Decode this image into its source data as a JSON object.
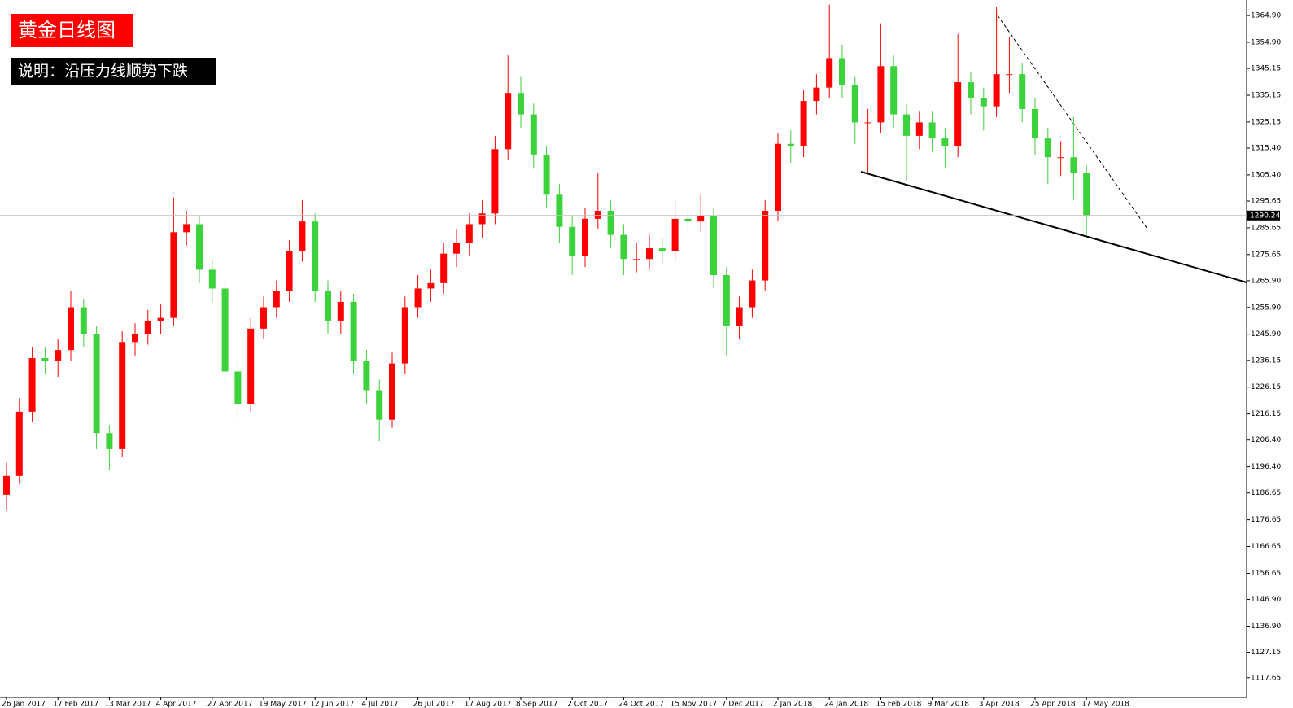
{
  "chart_data": {
    "type": "candlestick",
    "title": "黄金日线图",
    "subtitle": "说明：沿压力线顺势下跌",
    "categories": [
      "26 Jan 2017",
      null,
      null,
      null,
      "17 Feb 2017",
      null,
      null,
      null,
      "13 Mar 2017",
      null,
      null,
      null,
      "4 Apr 2017",
      null,
      null,
      null,
      "27 Apr 2017",
      null,
      null,
      null,
      "19 May 2017",
      null,
      null,
      null,
      "12 Jun 2017",
      null,
      null,
      null,
      "4 Jul 2017",
      null,
      null,
      null,
      "26 Jul 2017",
      null,
      null,
      null,
      "17 Aug 2017",
      null,
      null,
      null,
      "8 Sep 2017",
      null,
      null,
      null,
      "2 Oct 2017",
      null,
      null,
      null,
      "24 Oct 2017",
      null,
      null,
      null,
      "15 Nov 2017",
      null,
      null,
      null,
      "7 Dec 2017",
      null,
      null,
      null,
      "2 Jan 2018",
      null,
      null,
      null,
      "24 Jan 2018",
      null,
      null,
      null,
      "15 Feb 2018",
      null,
      null,
      null,
      "9 Mar 2018",
      null,
      null,
      null,
      "3 Apr 2018",
      null,
      null,
      null,
      "25 Apr 2018",
      null,
      null,
      null,
      "17 May 2018"
    ],
    "open": [
      1186,
      1193,
      1217,
      1237,
      1236,
      1240,
      1256,
      1246,
      1209,
      1203,
      1243,
      1246,
      1251,
      1252,
      1284,
      1287,
      1270,
      1263,
      1232,
      1220,
      1248,
      1256,
      1262,
      1277,
      1288,
      1262,
      1251,
      1258,
      1236,
      1225,
      1214,
      1235,
      1256,
      1263,
      1265,
      1276,
      1280,
      1287,
      1291,
      1315,
      1336,
      1328,
      1313,
      1298,
      1286,
      1275,
      1289,
      1292,
      1283,
      1274,
      1274,
      1278,
      1277,
      1289,
      1288,
      1290,
      1268,
      1249,
      1256,
      1266,
      1292,
      1317,
      1316,
      1333,
      1338,
      1349,
      1339,
      1325,
      1325,
      1346,
      1328,
      1320,
      1325,
      1319,
      1316,
      1340,
      1334,
      1331,
      1343,
      1343,
      1330,
      1319,
      1312,
      1312,
      1306
    ],
    "high": [
      1198,
      1222,
      1241,
      1241,
      1244,
      1262,
      1259,
      1249,
      1212,
      1247,
      1250,
      1255,
      1257,
      1297,
      1292,
      1290,
      1274,
      1266,
      1236,
      1252,
      1260,
      1266,
      1281,
      1296,
      1291,
      1266,
      1262,
      1261,
      1240,
      1229,
      1239,
      1260,
      1268,
      1270,
      1280,
      1285,
      1291,
      1296,
      1320,
      1350,
      1342,
      1332,
      1316,
      1302,
      1290,
      1293,
      1306,
      1296,
      1287,
      1280,
      1283,
      1282,
      1296,
      1293,
      1298,
      1293,
      1271,
      1260,
      1270,
      1296,
      1321,
      1322,
      1337,
      1343,
      1369,
      1354,
      1342,
      1330,
      1362,
      1350,
      1332,
      1329,
      1329,
      1323,
      1358,
      1344,
      1338,
      1368,
      1357,
      1347,
      1334,
      1323,
      1318,
      1327,
      1309
    ],
    "low": [
      1180,
      1190,
      1213,
      1231,
      1230,
      1236,
      1241,
      1203,
      1195,
      1200,
      1238,
      1242,
      1246,
      1249,
      1279,
      1265,
      1258,
      1226,
      1214,
      1217,
      1244,
      1252,
      1258,
      1273,
      1258,
      1246,
      1246,
      1231,
      1220,
      1206,
      1211,
      1231,
      1252,
      1258,
      1261,
      1271,
      1275,
      1282,
      1287,
      1311,
      1323,
      1308,
      1293,
      1280,
      1268,
      1271,
      1285,
      1278,
      1268,
      1269,
      1270,
      1272,
      1273,
      1283,
      1284,
      1263,
      1238,
      1244,
      1252,
      1262,
      1288,
      1310,
      1312,
      1328,
      1334,
      1334,
      1317,
      1306,
      1321,
      1323,
      1303,
      1315,
      1314,
      1308,
      1312,
      1328,
      1322,
      1327,
      1336,
      1325,
      1313,
      1302,
      1305,
      1296,
      1283
    ],
    "close": [
      1193,
      1217,
      1237,
      1236,
      1240,
      1256,
      1246,
      1209,
      1203,
      1243,
      1246,
      1251,
      1252,
      1284,
      1287,
      1270,
      1263,
      1232,
      1220,
      1248,
      1256,
      1262,
      1277,
      1288,
      1262,
      1251,
      1258,
      1236,
      1225,
      1214,
      1235,
      1256,
      1263,
      1265,
      1276,
      1280,
      1287,
      1291,
      1315,
      1336,
      1328,
      1313,
      1298,
      1286,
      1275,
      1289,
      1292,
      1283,
      1274,
      1274,
      1278,
      1277,
      1289,
      1288,
      1290,
      1268,
      1249,
      1256,
      1266,
      1292,
      1317,
      1316,
      1333,
      1338,
      1349,
      1339,
      1325,
      1325,
      1346,
      1328,
      1320,
      1325,
      1319,
      1316,
      1340,
      1334,
      1331,
      1343,
      1343,
      1330,
      1319,
      1312,
      1312,
      1306,
      1290.24
    ],
    "up_color": "#ff0000",
    "down_color": "#3cd23c",
    "current_price": 1290.24,
    "ylim": [
      1110.3,
      1370.7
    ],
    "yticks": [
      {
        "value": 1364.9,
        "label": "1364.90"
      },
      {
        "value": 1354.9,
        "label": "1354.90"
      },
      1345.15,
      1335.15,
      1325.15,
      {
        "value": 1315.4,
        "label": "1315.40"
      },
      {
        "value": 1305.4,
        "label": "1305.40"
      },
      1295.65,
      1285.65,
      1275.65,
      {
        "value": 1265.9,
        "label": "1265.90"
      },
      {
        "value": 1255.9,
        "label": "1255.90"
      },
      {
        "value": 1245.9,
        "label": "1245.90"
      },
      1236.15,
      1226.15,
      1216.15,
      {
        "value": 1206.4,
        "label": "1206.40"
      },
      {
        "value": 1196.4,
        "label": "1196.40"
      },
      1186.65,
      1176.65,
      1166.65,
      1156.65,
      {
        "value": 1146.9,
        "label": "1146.90"
      },
      {
        "value": 1136.9,
        "label": "1136.90"
      },
      1127.15,
      1117.65
    ]
  }
}
